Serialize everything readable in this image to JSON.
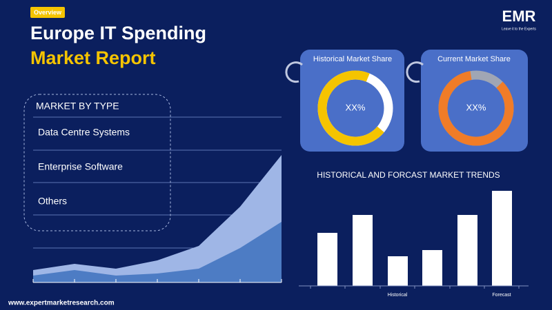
{
  "header": {
    "badge": "Overview",
    "title_line1": "Europe IT Spending",
    "title_line2": "Market Report"
  },
  "logo": {
    "name": "EMR",
    "tagline": "Leave it to the Experts"
  },
  "market_by_type": {
    "heading": "MARKET BY TYPE",
    "items": [
      "Data Centre Systems",
      "Enterprise Software",
      "Others"
    ]
  },
  "cards": [
    {
      "title": "Historical Market Share",
      "value": "XX%"
    },
    {
      "title": "Current Market Share",
      "value": "XX%"
    }
  ],
  "trends": {
    "title": "HISTORICAL AND FORCAST MARKET TRENDS",
    "labels": [
      "Historical",
      "Forecast"
    ]
  },
  "footer": {
    "url": "www.expertmarketresearch.com"
  }
}
